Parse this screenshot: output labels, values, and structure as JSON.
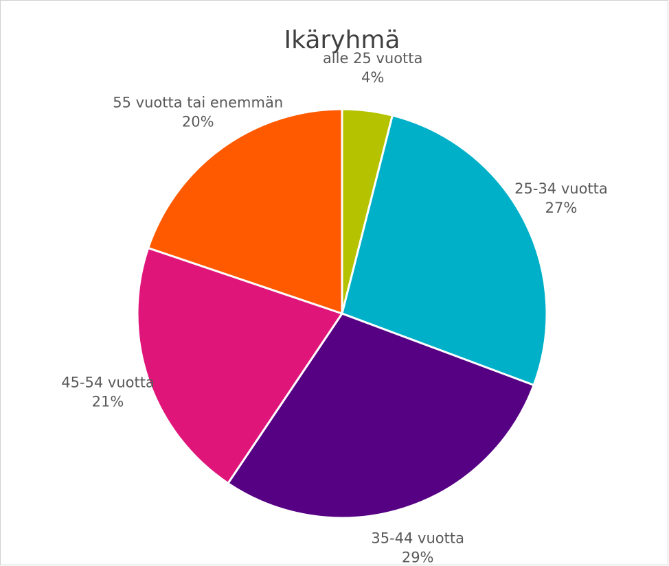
{
  "chart_data": {
    "type": "pie",
    "title": "Ikäryhmä",
    "categories": [
      "alle 25 vuotta",
      "25-34 vuotta",
      "35-44 vuotta",
      "45-54 vuotta",
      "55 vuotta tai enemmän"
    ],
    "values": [
      4,
      27,
      29,
      21,
      20
    ],
    "value_labels": [
      "4%",
      "27%",
      "29%",
      "21%",
      "20%"
    ],
    "colors": [
      "#b5c200",
      "#00b0c8",
      "#560084",
      "#e0157a",
      "#ff5a00"
    ]
  }
}
